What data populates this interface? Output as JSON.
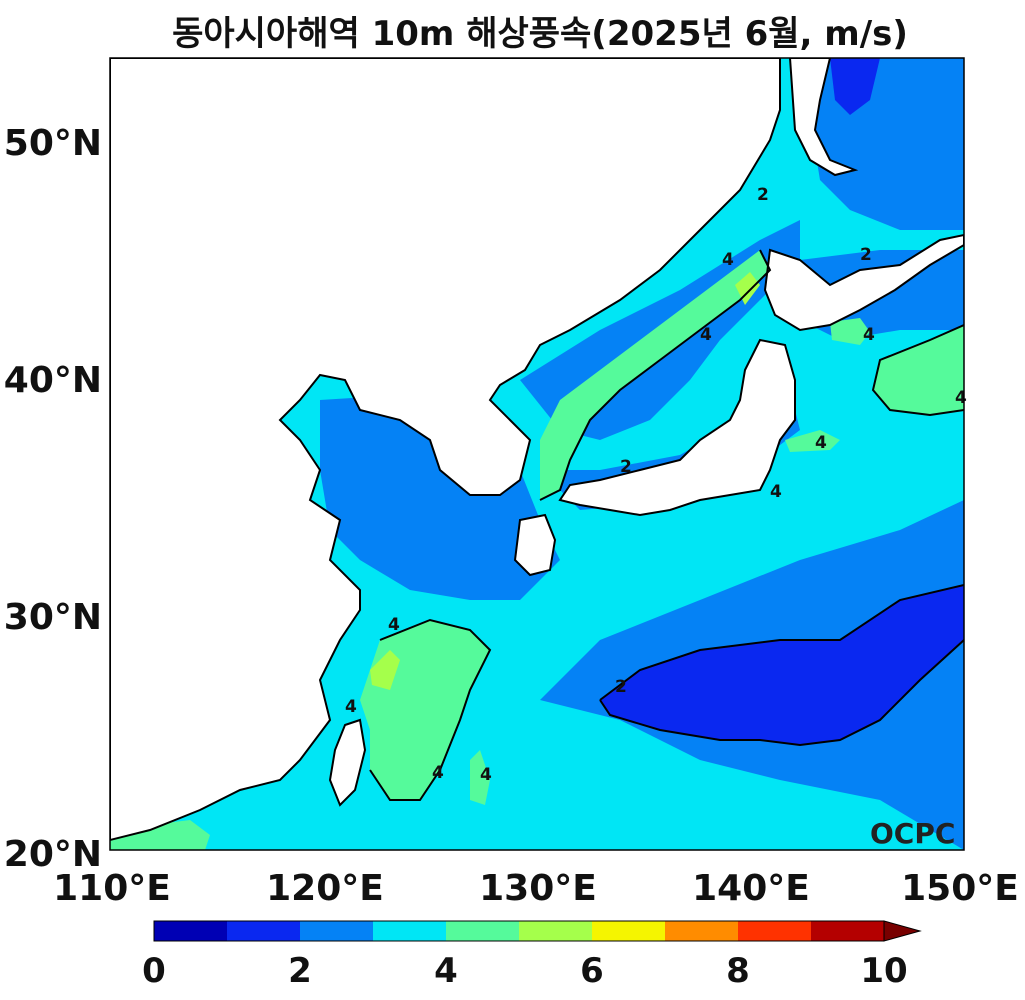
{
  "title": "동아시아해역 10m 해상풍속(2025년 6월, m/s)",
  "watermark": "OCPC",
  "lat_ticks": [
    "50°N",
    "40°N",
    "30°N",
    "20°N"
  ],
  "lon_ticks": [
    "110°E",
    "120°E",
    "130°E",
    "140°E",
    "150°E"
  ],
  "contour_labels": [
    "2",
    "4"
  ],
  "colorbar": {
    "labels": [
      "0",
      "2",
      "4",
      "6",
      "8",
      "10"
    ],
    "colors": [
      "#0000b4",
      "#0a28f0",
      "#0582f5",
      "#00e6f5",
      "#55fa9b",
      "#a5ff4b",
      "#f5f500",
      "#ff8c00",
      "#ff3200",
      "#b40000"
    ],
    "extend": "max",
    "extend_color": "#780000"
  },
  "land_color": "#ffffff",
  "coast_color": "#000000"
}
